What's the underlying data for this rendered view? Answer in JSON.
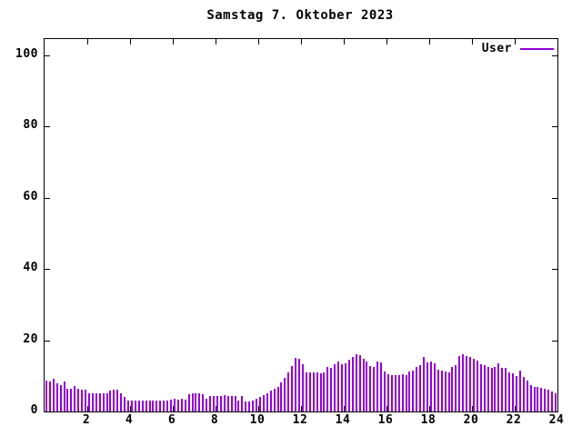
{
  "window": {
    "background": "#ffffff"
  },
  "chart_data": {
    "type": "bar",
    "title": "Samstag 7. Oktober 2023",
    "xlabel": "",
    "ylabel": "",
    "xlim": [
      0,
      24
    ],
    "ylim": [
      0,
      100
    ],
    "x_ticks": [
      2,
      4,
      6,
      8,
      10,
      12,
      14,
      16,
      18,
      20,
      22,
      24
    ],
    "y_ticks": [
      0,
      20,
      40,
      60,
      80,
      100
    ],
    "grid": false,
    "legend_position": "top-right-inside",
    "legend": [
      {
        "name": "User",
        "color": "#9400d3"
      }
    ],
    "colors": {
      "bar": "#9400d3",
      "axis": "#000000",
      "text": "#000000",
      "background": "#ffffff"
    },
    "x_unit": "hour-of-day",
    "interval_minutes": 10,
    "series": [
      {
        "name": "User",
        "values": [
          8.8,
          8.4,
          9.2,
          7.8,
          7.4,
          8.3,
          6.5,
          6.3,
          7.1,
          6.4,
          6.2,
          6.0,
          5.2,
          5.1,
          5.0,
          5.1,
          5.0,
          5.2,
          5.8,
          6.2,
          6.0,
          5.2,
          4.2,
          3.1,
          3.0,
          3.0,
          3.1,
          3.0,
          3.0,
          3.1,
          3.0,
          3.1,
          3.0,
          3.1,
          3.0,
          3.2,
          3.5,
          3.4,
          3.5,
          3.4,
          4.9,
          5.0,
          5.1,
          5.0,
          4.9,
          3.6,
          4.3,
          4.4,
          4.3,
          4.4,
          4.5,
          4.4,
          4.3,
          4.4,
          3.0,
          4.4,
          2.9,
          2.8,
          3.0,
          3.6,
          4.0,
          4.6,
          5.2,
          5.8,
          6.4,
          7.0,
          8.2,
          9.5,
          11.0,
          12.8,
          15.1,
          14.8,
          13.2,
          11.0,
          11.0,
          10.9,
          11.0,
          10.8,
          11.0,
          12.4,
          12.3,
          13.2,
          14.0,
          13.2,
          13.4,
          14.5,
          15.2,
          16.0,
          15.8,
          14.8,
          14.0,
          12.7,
          12.6,
          14.0,
          13.8,
          11.2,
          10.4,
          10.3,
          10.2,
          10.3,
          10.4,
          10.3,
          11.2,
          11.5,
          12.6,
          13.0,
          15.2,
          13.8,
          14.0,
          13.6,
          11.8,
          11.6,
          11.2,
          11.0,
          12.6,
          13.0,
          15.5,
          16.0,
          15.6,
          15.2,
          14.8,
          14.4,
          13.2,
          13.0,
          12.4,
          12.2,
          12.5,
          13.6,
          12.3,
          12.2,
          11.0,
          10.8,
          10.0,
          11.4,
          9.8,
          8.8,
          7.4,
          7.0,
          6.9,
          6.6,
          6.3,
          6.0,
          5.5,
          5.0
        ]
      }
    ]
  }
}
